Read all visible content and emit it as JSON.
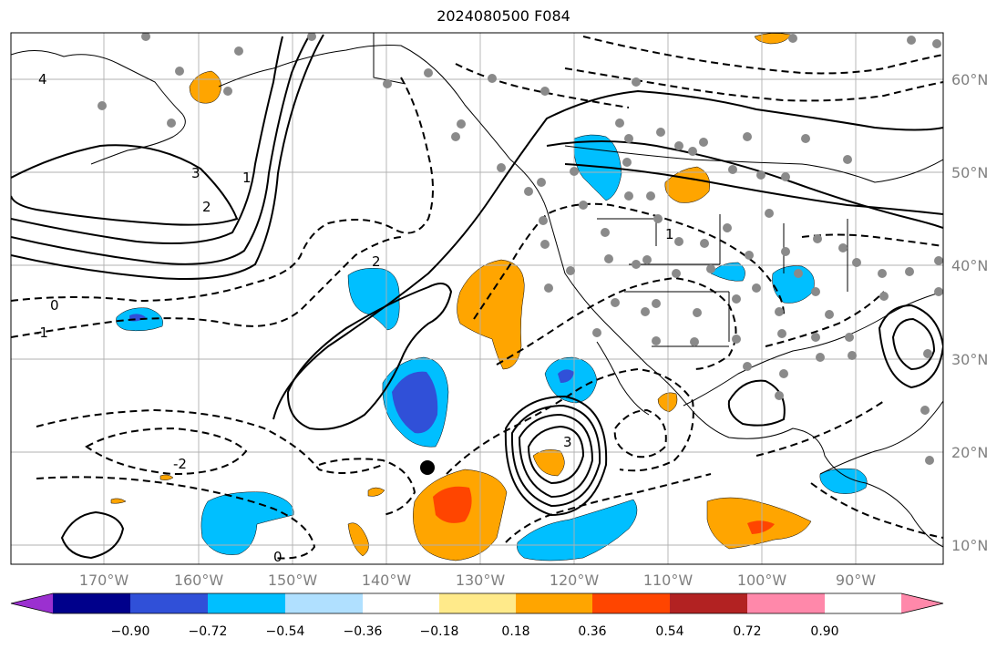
{
  "title": "2024080500 F084",
  "map": {
    "lon_labels": [
      "170°W",
      "160°W",
      "150°W",
      "140°W",
      "130°W",
      "120°W",
      "110°W",
      "100°W",
      "90°W"
    ],
    "lat_labels": [
      "60°N",
      "50°N",
      "40°N",
      "30°N",
      "20°N",
      "10°N"
    ],
    "contour_labels": [
      "4",
      "3",
      "2",
      "1",
      "0",
      "-1",
      "-2",
      "0",
      "1",
      "2",
      "3"
    ],
    "grid": true
  },
  "colorbar": {
    "colors": [
      "#9b30d0",
      "#00008b",
      "#3050d8",
      "#00bfff",
      "#b0e0ff",
      "#ffffff",
      "#ffea8a",
      "#ffa500",
      "#ff4500",
      "#b22222",
      "#ff88aa"
    ],
    "tick_labels": [
      "−0.90",
      "−0.72",
      "−0.54",
      "−0.36",
      "−0.18",
      "0.18",
      "0.36",
      "0.54",
      "0.72",
      "0.90"
    ],
    "extend": "both"
  }
}
